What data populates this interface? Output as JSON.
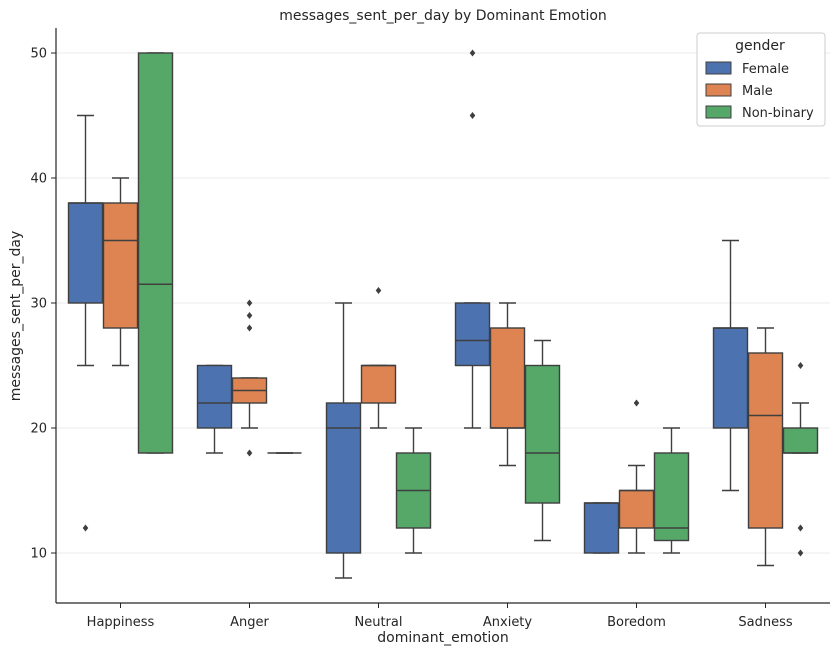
{
  "chart_data": {
    "type": "box",
    "title": "messages_sent_per_day by Dominant Emotion",
    "xlabel": "dominant_emotion",
    "ylabel": "messages_sent_per_day",
    "categories": [
      "Happiness",
      "Anger",
      "Neutral",
      "Anxiety",
      "Boredom",
      "Sadness"
    ],
    "ylim": [
      6,
      52
    ],
    "yticks": [
      10,
      20,
      30,
      40,
      50
    ],
    "grid": true,
    "legend": {
      "title": "gender",
      "position": "top-right"
    },
    "series": [
      {
        "name": "Female",
        "color": "#4c72b0",
        "boxes": [
          {
            "low": 25,
            "q1": 30,
            "median": 38,
            "q3": 38,
            "high": 45,
            "outliers": [
              12
            ]
          },
          {
            "low": 18,
            "q1": 20,
            "median": 22,
            "q3": 25,
            "high": 25,
            "outliers": []
          },
          {
            "low": 8,
            "q1": 10,
            "median": 20,
            "q3": 22,
            "high": 30,
            "outliers": []
          },
          {
            "low": 20,
            "q1": 25,
            "median": 27,
            "q3": 30,
            "high": 30,
            "outliers": [
              45,
              50
            ]
          },
          {
            "low": 10,
            "q1": 10,
            "median": 14,
            "q3": 14,
            "high": 14,
            "outliers": []
          },
          {
            "low": 15,
            "q1": 20,
            "median": 28,
            "q3": 28,
            "high": 35,
            "outliers": []
          }
        ]
      },
      {
        "name": "Male",
        "color": "#dd8452",
        "boxes": [
          {
            "low": 25,
            "q1": 28,
            "median": 35,
            "q3": 38,
            "high": 40,
            "outliers": []
          },
          {
            "low": 20,
            "q1": 22,
            "median": 23,
            "q3": 24,
            "high": 24,
            "outliers": [
              18,
              28,
              29,
              30
            ]
          },
          {
            "low": 20,
            "q1": 22,
            "median": 25,
            "q3": 25,
            "high": 25,
            "outliers": [
              31
            ]
          },
          {
            "low": 17,
            "q1": 20,
            "median": 20,
            "q3": 28,
            "high": 30,
            "outliers": []
          },
          {
            "low": 10,
            "q1": 12,
            "median": 15,
            "q3": 15,
            "high": 17,
            "outliers": [
              22
            ]
          },
          {
            "low": 9,
            "q1": 12,
            "median": 21,
            "q3": 26,
            "high": 28,
            "outliers": []
          }
        ]
      },
      {
        "name": "Non-binary",
        "color": "#55a868",
        "boxes": [
          {
            "low": 18,
            "q1": 18,
            "median": 31.5,
            "q3": 50,
            "high": 50,
            "outliers": []
          },
          {
            "low": 18,
            "q1": 18,
            "median": 18,
            "q3": 18,
            "high": 18,
            "outliers": []
          },
          {
            "low": 10,
            "q1": 12,
            "median": 15,
            "q3": 18,
            "high": 20,
            "outliers": []
          },
          {
            "low": 11,
            "q1": 14,
            "median": 18,
            "q3": 25,
            "high": 27,
            "outliers": []
          },
          {
            "low": 10,
            "q1": 11,
            "median": 12,
            "q3": 18,
            "high": 20,
            "outliers": []
          },
          {
            "low": 18,
            "q1": 18,
            "median": 18,
            "q3": 20,
            "high": 22,
            "outliers": [
              10,
              12,
              25
            ]
          }
        ]
      }
    ]
  }
}
